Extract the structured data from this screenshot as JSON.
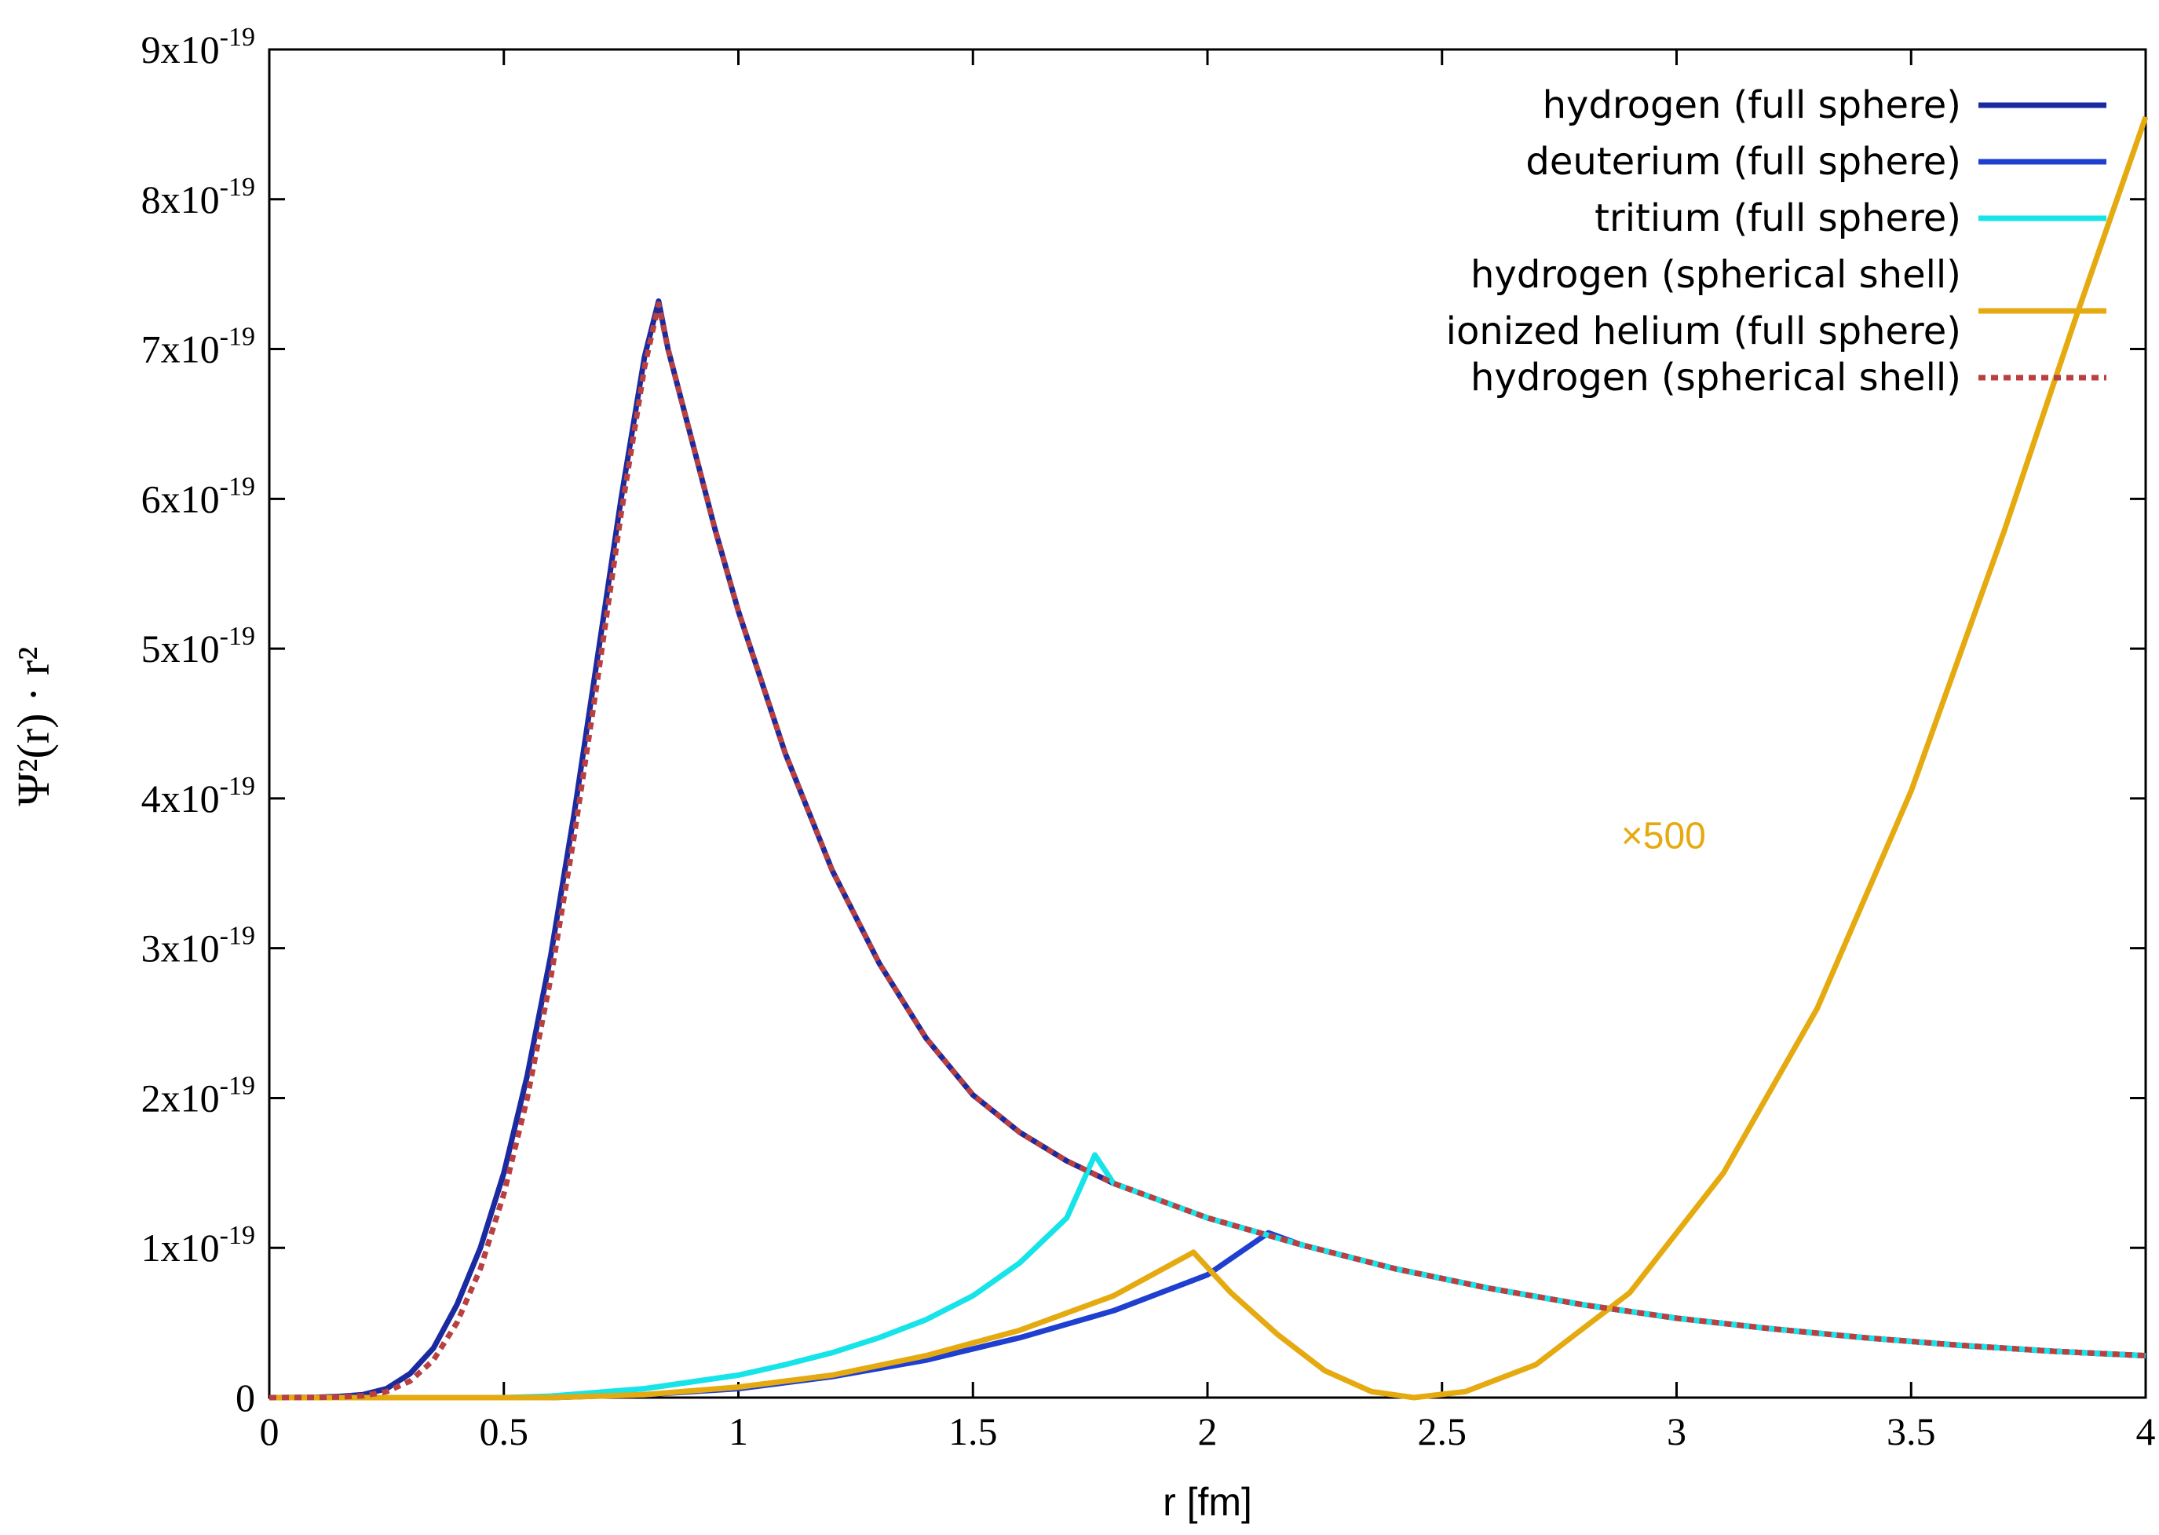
{
  "chart_data": {
    "type": "line",
    "xlabel": "r [fm]",
    "ylabel": "Ψ²(r) · r²",
    "xlim": [
      0,
      4
    ],
    "ylim": [
      0,
      9e-19
    ],
    "x_ticks": [
      "0",
      "0.5",
      "1",
      "1.5",
      "2",
      "2.5",
      "3",
      "3.5",
      "4"
    ],
    "y_ticks": [
      {
        "mantissa": "0",
        "exp": ""
      },
      {
        "mantissa": "1x10",
        "exp": "-19"
      },
      {
        "mantissa": "2x10",
        "exp": "-19"
      },
      {
        "mantissa": "3x10",
        "exp": "-19"
      },
      {
        "mantissa": "4x10",
        "exp": "-19"
      },
      {
        "mantissa": "5x10",
        "exp": "-19"
      },
      {
        "mantissa": "6x10",
        "exp": "-19"
      },
      {
        "mantissa": "7x10",
        "exp": "-19"
      },
      {
        "mantissa": "8x10",
        "exp": "-19"
      },
      {
        "mantissa": "9x10",
        "exp": "-19"
      }
    ],
    "grid": false,
    "legend_position": "top-right",
    "annotation": {
      "text": "×500",
      "x": 3.3,
      "y": 3.75e-19,
      "color": "#e5aa10"
    },
    "series": [
      {
        "name": "hydrogen (full sphere)",
        "color": "#1a2aa0",
        "dash": "solid",
        "points": [
          [
            0,
            0
          ],
          [
            0.1,
            2e-22
          ],
          [
            0.15,
            8e-22
          ],
          [
            0.2,
            2e-21
          ],
          [
            0.25,
            6e-21
          ],
          [
            0.3,
            1.6e-20
          ],
          [
            0.35,
            3.3e-20
          ],
          [
            0.4,
            6.2e-20
          ],
          [
            0.45,
            1e-19
          ],
          [
            0.5,
            1.5e-19
          ],
          [
            0.55,
            2.15e-19
          ],
          [
            0.6,
            2.95e-19
          ],
          [
            0.65,
            3.9e-19
          ],
          [
            0.7,
            4.95e-19
          ],
          [
            0.75,
            6e-19
          ],
          [
            0.8,
            6.95e-19
          ],
          [
            0.83,
            7.32e-19
          ],
          [
            0.85,
            7e-19
          ],
          [
            0.9,
            6.4e-19
          ],
          [
            0.95,
            5.8e-19
          ],
          [
            1.0,
            5.25e-19
          ],
          [
            1.1,
            4.3e-19
          ],
          [
            1.2,
            3.52e-19
          ],
          [
            1.3,
            2.9e-19
          ],
          [
            1.4,
            2.4e-19
          ],
          [
            1.5,
            2.02e-19
          ],
          [
            1.6,
            1.77e-19
          ],
          [
            1.7,
            1.58e-19
          ],
          [
            1.8,
            1.43e-19
          ],
          [
            2.0,
            1.2e-19
          ],
          [
            2.2,
            1.02e-19
          ],
          [
            2.4,
            8.6e-20
          ],
          [
            2.6,
            7.3e-20
          ],
          [
            2.8,
            6.2e-20
          ],
          [
            3.0,
            5.3e-20
          ],
          [
            3.2,
            4.6e-20
          ],
          [
            3.4,
            4e-20
          ],
          [
            3.6,
            3.5e-20
          ],
          [
            3.8,
            3.1e-20
          ],
          [
            4.0,
            2.8e-20
          ]
        ]
      },
      {
        "name": "deuterium (full sphere)",
        "color": "#1f3fd0",
        "dash": "solid",
        "points": [
          [
            0,
            0
          ],
          [
            0.6,
            0.0
          ],
          [
            0.8,
            2e-21
          ],
          [
            1.0,
            6e-21
          ],
          [
            1.2,
            1.4e-20
          ],
          [
            1.4,
            2.5e-20
          ],
          [
            1.6,
            4e-20
          ],
          [
            1.8,
            5.8e-20
          ],
          [
            2.0,
            8.2e-20
          ],
          [
            2.13,
            1.1e-19
          ],
          [
            2.2,
            1.02e-19
          ],
          [
            2.4,
            8.6e-20
          ],
          [
            2.6,
            7.3e-20
          ],
          [
            2.8,
            6.2e-20
          ],
          [
            3.0,
            5.3e-20
          ],
          [
            3.2,
            4.6e-20
          ],
          [
            3.4,
            4e-20
          ],
          [
            3.6,
            3.5e-20
          ],
          [
            3.8,
            3.1e-20
          ],
          [
            4.0,
            2.8e-20
          ]
        ]
      },
      {
        "name": "tritium (full sphere)",
        "color": "#16e4e8",
        "dash": "solid",
        "points": [
          [
            0,
            0
          ],
          [
            0.5,
            0.0
          ],
          [
            0.6,
            1e-21
          ],
          [
            0.8,
            6e-21
          ],
          [
            1.0,
            1.5e-20
          ],
          [
            1.1,
            2.2e-20
          ],
          [
            1.2,
            3e-20
          ],
          [
            1.3,
            4e-20
          ],
          [
            1.4,
            5.2e-20
          ],
          [
            1.5,
            6.8e-20
          ],
          [
            1.6,
            9e-20
          ],
          [
            1.7,
            1.2e-19
          ],
          [
            1.76,
            1.62e-19
          ],
          [
            1.8,
            1.43e-19
          ],
          [
            2.0,
            1.2e-19
          ],
          [
            2.2,
            1.02e-19
          ],
          [
            2.4,
            8.6e-20
          ],
          [
            2.6,
            7.3e-20
          ],
          [
            2.8,
            6.2e-20
          ],
          [
            3.0,
            5.3e-20
          ],
          [
            3.2,
            4.6e-20
          ],
          [
            3.4,
            4e-20
          ],
          [
            3.6,
            3.5e-20
          ],
          [
            3.8,
            3.1e-20
          ],
          [
            4.0,
            2.8e-20
          ]
        ]
      },
      {
        "name": "hydrogen (spherical shell)",
        "color": "#e5aa10",
        "dash": "solid",
        "points": [
          [
            0,
            0
          ],
          [
            0.6,
            0.0
          ],
          [
            0.8,
            2e-21
          ],
          [
            1.0,
            7e-21
          ],
          [
            1.2,
            1.5e-20
          ],
          [
            1.4,
            2.8e-20
          ],
          [
            1.6,
            4.5e-20
          ],
          [
            1.8,
            6.8e-20
          ],
          [
            1.97,
            9.7e-20
          ],
          [
            2.05,
            7e-20
          ],
          [
            2.15,
            4.2e-20
          ],
          [
            2.25,
            1.8e-20
          ],
          [
            2.35,
            4e-21
          ],
          [
            2.44,
            0.0
          ],
          [
            2.55,
            4e-21
          ],
          [
            2.7,
            2.2e-20
          ],
          [
            2.9,
            7e-20
          ],
          [
            3.1,
            1.5e-19
          ],
          [
            3.3,
            2.6e-19
          ],
          [
            3.5,
            4.05e-19
          ],
          [
            3.7,
            5.8e-19
          ],
          [
            3.85,
            7.2e-19
          ],
          [
            4.0,
            8.55e-19
          ]
        ]
      },
      {
        "name": "ionized helium (full sphere)",
        "color": "#e5aa10",
        "dash": "solid",
        "points": []
      },
      {
        "name": "hydrogen (spherical shell)",
        "color": "#b84040",
        "dash": "dotted",
        "points": [
          [
            0,
            0
          ],
          [
            0.1,
            1e-22
          ],
          [
            0.15,
            4e-22
          ],
          [
            0.2,
            1.2e-21
          ],
          [
            0.25,
            4e-21
          ],
          [
            0.3,
            1.1e-20
          ],
          [
            0.35,
            2.5e-20
          ],
          [
            0.4,
            5e-20
          ],
          [
            0.45,
            8.6e-20
          ],
          [
            0.5,
            1.36e-19
          ],
          [
            0.55,
            2e-19
          ],
          [
            0.6,
            2.8e-19
          ],
          [
            0.65,
            3.75e-19
          ],
          [
            0.7,
            4.8e-19
          ],
          [
            0.75,
            5.9e-19
          ],
          [
            0.8,
            6.88e-19
          ],
          [
            0.83,
            7.3e-19
          ],
          [
            0.85,
            7e-19
          ],
          [
            0.9,
            6.4e-19
          ],
          [
            0.95,
            5.8e-19
          ],
          [
            1.0,
            5.25e-19
          ],
          [
            1.1,
            4.3e-19
          ],
          [
            1.2,
            3.52e-19
          ],
          [
            1.3,
            2.9e-19
          ],
          [
            1.4,
            2.4e-19
          ],
          [
            1.5,
            2.02e-19
          ],
          [
            1.6,
            1.77e-19
          ],
          [
            1.7,
            1.58e-19
          ],
          [
            1.8,
            1.43e-19
          ],
          [
            2.0,
            1.2e-19
          ],
          [
            2.2,
            1.02e-19
          ],
          [
            2.4,
            8.6e-20
          ],
          [
            2.6,
            7.3e-20
          ],
          [
            2.8,
            6.2e-20
          ],
          [
            3.0,
            5.3e-20
          ],
          [
            3.2,
            4.6e-20
          ],
          [
            3.4,
            4e-20
          ],
          [
            3.6,
            3.5e-20
          ],
          [
            3.8,
            3.1e-20
          ],
          [
            4.0,
            2.8e-20
          ]
        ]
      }
    ]
  }
}
